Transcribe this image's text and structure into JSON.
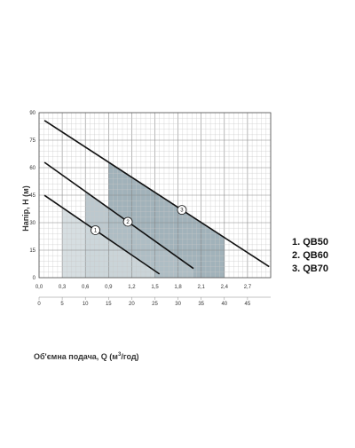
{
  "chart_data": {
    "type": "line",
    "title": "",
    "ylabel": "Напір, H (м)",
    "xlabel_prefix": "Об'ємна подача, Q (м",
    "xlabel_sup": "3",
    "xlabel_suffix": "/год)",
    "ylim": [
      0,
      90
    ],
    "xlim": [
      0,
      3.0
    ],
    "x2lim": [
      0,
      50
    ],
    "grid": true,
    "y_ticks": [
      "0",
      "15",
      "30",
      "45",
      "60",
      "75",
      "90"
    ],
    "x_ticks": [
      "0,0",
      "0,3",
      "0,6",
      "0,9",
      "1,2",
      "1,5",
      "1,8",
      "2,1",
      "2,4",
      "2,7"
    ],
    "x2_ticks": [
      "0",
      "5",
      "10",
      "15",
      "20",
      "25",
      "30",
      "35",
      "40",
      "45"
    ],
    "series": [
      {
        "name": "QB50",
        "marker": "1",
        "color": "#111111",
        "region_color": "#cfd8dc",
        "x": [
          0.9,
          1.56
        ],
        "y": [
          21,
          2
        ],
        "region_x": [
          0.3,
          1.5
        ]
      },
      {
        "name": "QB60",
        "marker": "2",
        "color": "#111111",
        "region_color": "#b0bec5",
        "x": [
          0.9,
          2.0
        ],
        "y": [
          38,
          5
        ],
        "region_x": [
          0.6,
          2.0
        ]
      },
      {
        "name": "QB70",
        "marker": "3",
        "color": "#111111",
        "region_color": "#90a4ae",
        "x": [
          0.9,
          2.98
        ],
        "y": [
          63,
          6
        ],
        "region_x": [
          0.9,
          2.4
        ]
      }
    ],
    "legend": [
      "1. QB50",
      "2. QB60",
      "3. QB70"
    ],
    "legend_position": "right"
  }
}
